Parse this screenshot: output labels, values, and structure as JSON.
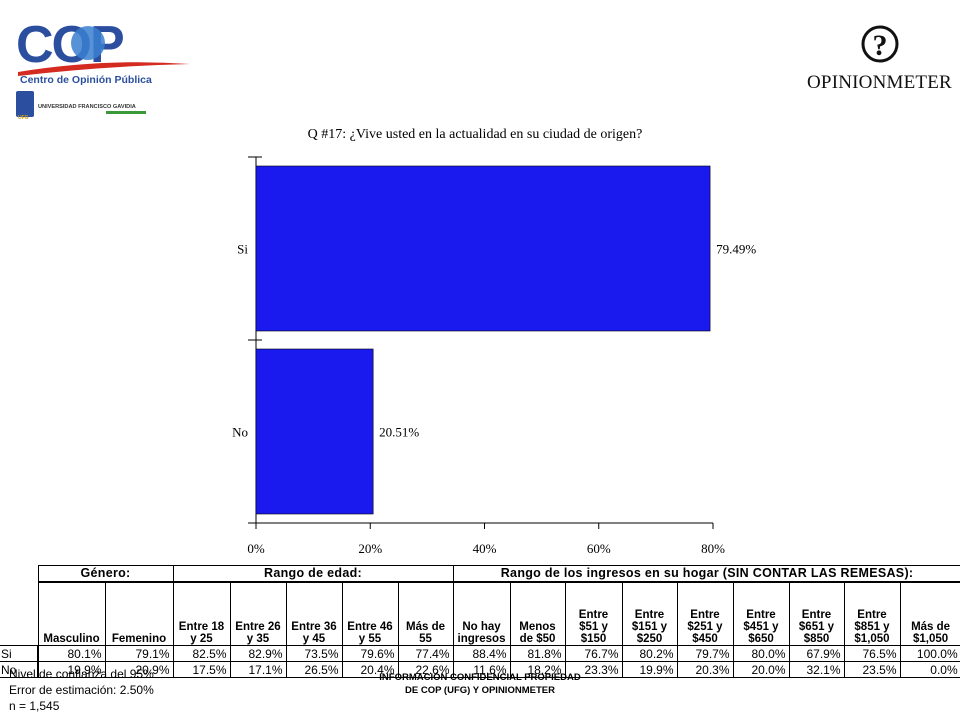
{
  "logos": {
    "cop_wordmark": "COP",
    "cop_subtitle": "Centro de Opinión Pública",
    "ufg_name": "UNIVERSIDAD FRANCISCO GAVIDIA",
    "ufg_abbr": "UFG",
    "opinionmeter_wordmark": "OPINIONMETER"
  },
  "colors": {
    "bar": "#1a1aee",
    "cop_blue": "#2b4f9e",
    "cop_red": "#d42a1f"
  },
  "chart_data": {
    "type": "bar",
    "orientation": "horizontal",
    "title": "Q #17: ¿Vive usted en la actualidad en su ciudad de origen?",
    "categories": [
      "Si",
      "No"
    ],
    "values": [
      79.49,
      20.51
    ],
    "value_labels": [
      "79.49%",
      "20.51%"
    ],
    "xlim": [
      0,
      80
    ],
    "xticks": [
      0,
      20,
      40,
      60,
      80
    ],
    "xtick_labels": [
      "0%",
      "20%",
      "40%",
      "60%",
      "80%"
    ],
    "xlabel": "",
    "ylabel": "",
    "grid": false,
    "legend": "none"
  },
  "table": {
    "groups": [
      "Género:",
      "Rango de edad:",
      "Rango de los ingresos en su hogar (SIN CONTAR LAS REMESAS):"
    ],
    "columns": [
      [
        "Masculino"
      ],
      [
        "Femenino"
      ],
      [
        "Entre 18",
        "y 25"
      ],
      [
        "Entre 26",
        "y 35"
      ],
      [
        "Entre 36",
        "y 45"
      ],
      [
        "Entre 46",
        "y 55"
      ],
      [
        "Más de",
        "55"
      ],
      [
        "No hay",
        "ingresos"
      ],
      [
        "Menos",
        "de $50"
      ],
      [
        "Entre",
        "$51 y",
        "$150"
      ],
      [
        "Entre",
        "$151 y",
        "$250"
      ],
      [
        "Entre",
        "$251 y",
        "$450"
      ],
      [
        "Entre",
        "$451 y",
        "$650"
      ],
      [
        "Entre",
        "$651 y",
        "$850"
      ],
      [
        "Entre",
        "$851 y",
        "$1,050"
      ],
      [
        "Más de",
        "$1,050"
      ]
    ],
    "rows": [
      {
        "label": "Si",
        "values": [
          "80.1%",
          "79.1%",
          "82.5%",
          "82.9%",
          "73.5%",
          "79.6%",
          "77.4%",
          "88.4%",
          "81.8%",
          "76.7%",
          "80.2%",
          "79.7%",
          "80.0%",
          "67.9%",
          "76.5%",
          "100.0%"
        ]
      },
      {
        "label": "No",
        "values": [
          "19.9%",
          "20.9%",
          "17.5%",
          "17.1%",
          "26.5%",
          "20.4%",
          "22.6%",
          "11.6%",
          "18.2%",
          "23.3%",
          "19.9%",
          "20.3%",
          "20.0%",
          "32.1%",
          "23.5%",
          "0.0%"
        ]
      }
    ]
  },
  "footer": {
    "stats": [
      "Nivel de confianza del 95%",
      "Error de estimación: 2.50%",
      "n = 1,545"
    ],
    "confidential": [
      "INFORMACIÓN CONFIDENCIAL PROPIEDAD",
      "DE COP (UFG) Y OPINIONMETER"
    ]
  }
}
